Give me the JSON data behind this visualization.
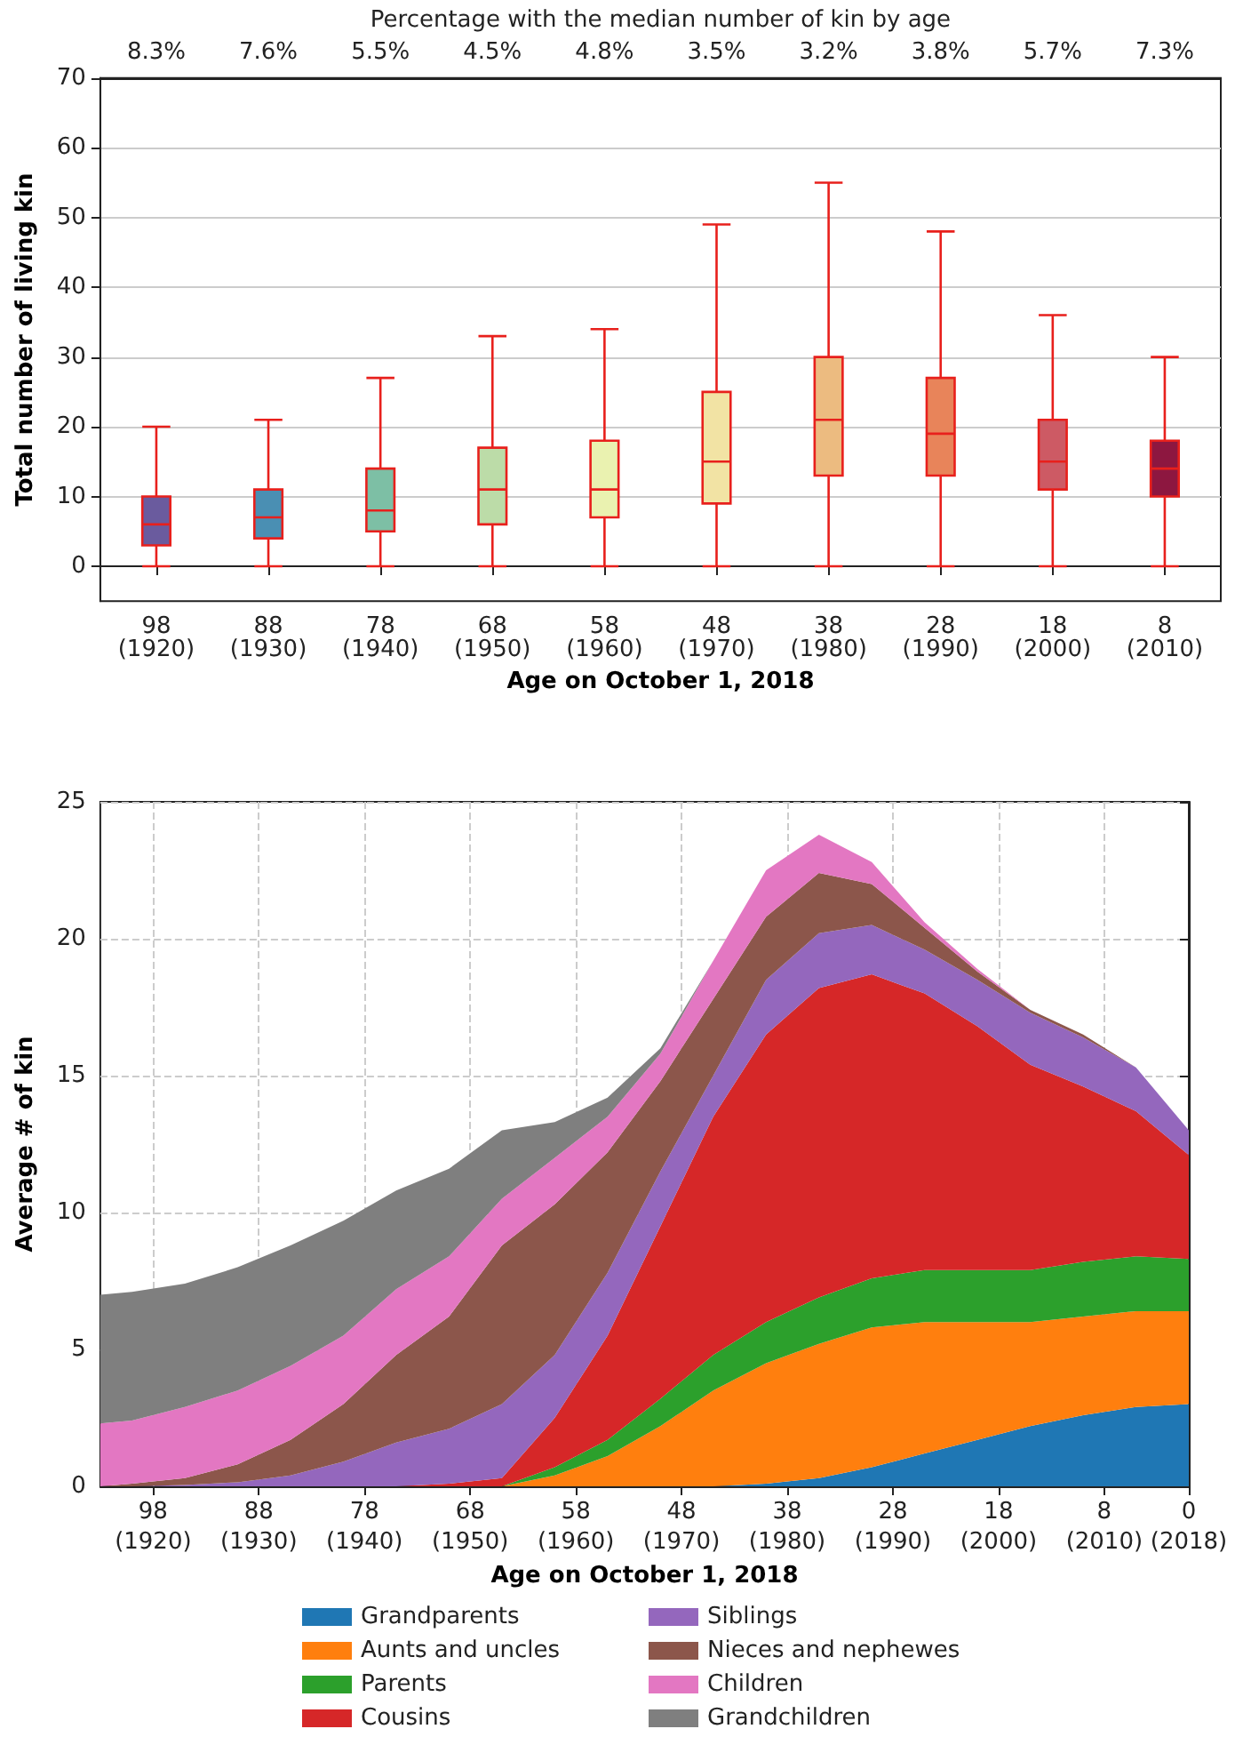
{
  "chart_data": [
    {
      "type": "box",
      "x2label": "Percentage with the median number of kin by age",
      "xlabel": "Age on October 1, 2018",
      "ylabel": "Total number of living kin",
      "categories": [
        "98\n(1920)",
        "88\n(1930)",
        "78\n(1940)",
        "68\n(1950)",
        "58\n(1960)",
        "48\n(1970)",
        "38\n(1980)",
        "28\n(1990)",
        "18\n(2000)",
        "8\n(2010)"
      ],
      "color": "#e8201c",
      "colors": [
        "#6a5b9e",
        "#4a8fb3",
        "#7dbfa5",
        "#bcdca8",
        "#eaf2b0",
        "#f2e3a4",
        "#ecbb80",
        "#e8845a",
        "#cd5a64",
        "#8d1740"
      ],
      "boxes": [
        {
          "low": 0,
          "q1": 3,
          "median": 6,
          "q3": 10,
          "high": 20
        },
        {
          "low": 0,
          "q1": 4,
          "median": 7,
          "q3": 11,
          "high": 21
        },
        {
          "low": 0,
          "q1": 5,
          "median": 8,
          "q3": 14,
          "high": 27
        },
        {
          "low": 0,
          "q1": 6,
          "median": 11,
          "q3": 17,
          "high": 33
        },
        {
          "low": 0,
          "q1": 7,
          "median": 11,
          "q3": 18,
          "high": 34
        },
        {
          "low": 0,
          "q1": 9,
          "median": 15,
          "q3": 25,
          "high": 49
        },
        {
          "low": 0,
          "q1": 13,
          "median": 21,
          "q3": 30,
          "high": 55
        },
        {
          "low": 0,
          "q1": 13,
          "median": 19,
          "q3": 27,
          "high": 48
        },
        {
          "low": 0,
          "q1": 11,
          "median": 15,
          "q3": 21,
          "high": 36
        },
        {
          "low": 0,
          "q1": 10,
          "median": 14,
          "q3": 18,
          "high": 30
        }
      ],
      "annotations": [
        "8.3%",
        "7.6%",
        "5.5%",
        "4.5%",
        "4.8%",
        "3.5%",
        "3.2%",
        "3.8%",
        "5.7%",
        "7.3%"
      ],
      "ylim": [
        -5,
        70
      ],
      "yticks": [
        0,
        10,
        20,
        30,
        40,
        50,
        60,
        70
      ],
      "grid": "y"
    },
    {
      "type": "area",
      "stacked": true,
      "xlabel": "Age on October 1, 2018",
      "ylabel": "Average # of kin",
      "x": [
        103,
        100,
        95,
        90,
        85,
        80,
        75,
        70,
        65,
        60,
        55,
        50,
        45,
        40,
        35,
        30,
        25,
        20,
        15,
        10,
        5,
        0
      ],
      "series": [
        {
          "name": "Grandparents",
          "color": "#1f77b4",
          "values": [
            0,
            0,
            0,
            0,
            0,
            0,
            0,
            0,
            0,
            0,
            0,
            0,
            0,
            0.1,
            0.3,
            0.7,
            1.2,
            1.7,
            2.2,
            2.6,
            2.9,
            3.0
          ]
        },
        {
          "name": "Aunts and uncles",
          "color": "#ff7f0e",
          "values": [
            0,
            0,
            0,
            0,
            0,
            0,
            0,
            0,
            0,
            0.4,
            1.1,
            2.2,
            3.5,
            4.4,
            4.9,
            5.1,
            4.8,
            4.3,
            3.8,
            3.6,
            3.5,
            3.4
          ]
        },
        {
          "name": "Parents",
          "color": "#2ca02c",
          "values": [
            0,
            0,
            0,
            0,
            0,
            0,
            0,
            0,
            0,
            0.3,
            0.6,
            1.0,
            1.3,
            1.5,
            1.7,
            1.8,
            1.9,
            1.9,
            1.9,
            2.0,
            2.0,
            1.9
          ]
        },
        {
          "name": "Cousins",
          "color": "#d62728",
          "values": [
            0,
            0,
            0,
            0,
            0,
            0,
            0,
            0.1,
            0.3,
            1.8,
            3.8,
            6.3,
            8.7,
            10.5,
            11.3,
            11.1,
            10.1,
            8.9,
            7.5,
            6.4,
            5.3,
            3.8
          ]
        },
        {
          "name": "Siblings",
          "color": "#9467bd",
          "values": [
            0,
            0,
            0.05,
            0.15,
            0.4,
            0.9,
            1.6,
            2.0,
            2.7,
            2.3,
            2.3,
            2.0,
            1.5,
            2.0,
            2.0,
            1.8,
            1.6,
            1.7,
            1.9,
            1.8,
            1.6,
            0.9
          ]
        },
        {
          "name": "Nieces and nephewes",
          "color": "#8c564b",
          "values": [
            0,
            0.1,
            0.25,
            0.65,
            1.3,
            2.1,
            3.2,
            4.1,
            5.8,
            5.5,
            4.4,
            3.3,
            2.8,
            2.3,
            2.2,
            1.5,
            0.8,
            0.3,
            0.1,
            0.1,
            0,
            0
          ]
        },
        {
          "name": "Children",
          "color": "#e377c2",
          "values": [
            2.3,
            2.3,
            2.6,
            2.7,
            2.7,
            2.5,
            2.4,
            2.2,
            1.7,
            1.7,
            1.3,
            1.0,
            1.4,
            1.7,
            1.4,
            0.8,
            0.2,
            0.1,
            0,
            0,
            0,
            0
          ]
        },
        {
          "name": "Grandchildren",
          "color": "#7f7f7f",
          "values": [
            4.7,
            4.7,
            4.5,
            4.5,
            4.4,
            4.2,
            3.6,
            3.2,
            2.5,
            1.3,
            0.7,
            0.2,
            0,
            0,
            0,
            0,
            0,
            0,
            0,
            0,
            0,
            0
          ]
        }
      ],
      "xlim": [
        103,
        0
      ],
      "xticks": [
        98,
        88,
        78,
        68,
        58,
        48,
        38,
        28,
        18,
        8,
        0
      ],
      "x2lim": [
        1915,
        2018
      ],
      "x2ticks": [
        {
          "value": 1920,
          "label": "(1920)"
        },
        {
          "value": 1930,
          "label": "(1930)"
        },
        {
          "value": 1940,
          "label": "(1940)"
        },
        {
          "value": 1950,
          "label": "(1950)"
        },
        {
          "value": 1960,
          "label": "(1960)"
        },
        {
          "value": 1970,
          "label": "(1970)"
        },
        {
          "value": 1980,
          "label": "(1980)"
        },
        {
          "value": 1990,
          "label": "(1990)"
        },
        {
          "value": 2000,
          "label": "(2000)"
        },
        {
          "value": 2010,
          "label": "(2010)"
        },
        {
          "value": 2018,
          "label": "(2018)"
        }
      ],
      "ylim": [
        0,
        25
      ],
      "yticks": [
        0,
        5,
        10,
        15,
        20,
        25
      ],
      "grid": true,
      "legend": "bottom"
    }
  ]
}
